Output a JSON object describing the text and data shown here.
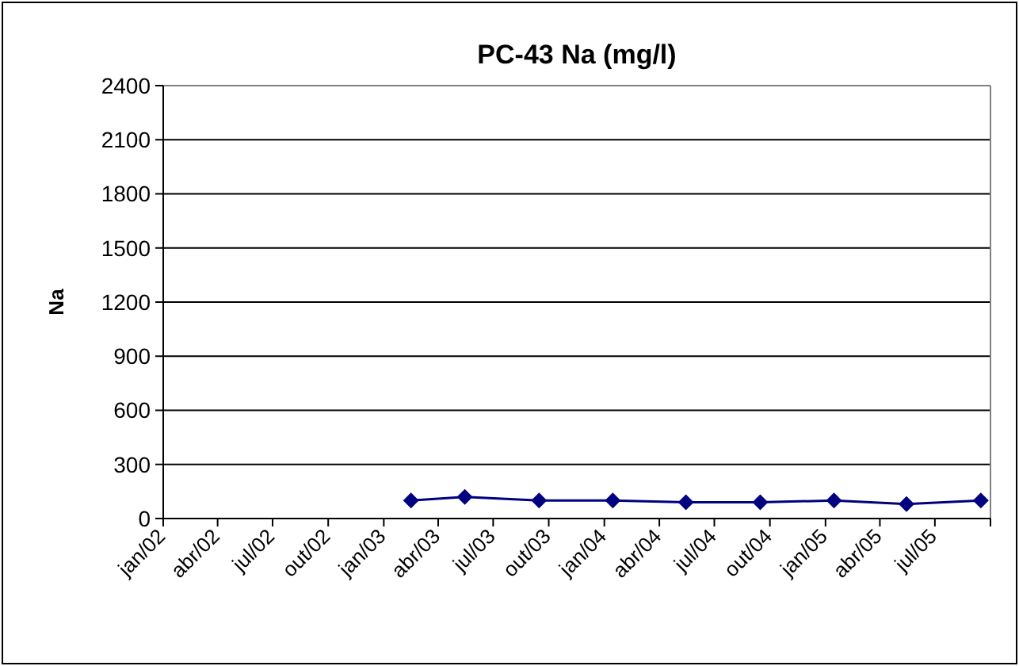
{
  "chart_data": {
    "type": "line",
    "title": "PC-43 Na (mg/l)",
    "ylabel": "Na",
    "x": [
      "2003-02-15",
      "2003-05-15",
      "2003-09-15",
      "2004-01-15",
      "2004-05-15",
      "2004-09-15",
      "2005-01-15",
      "2005-05-15",
      "2005-09-15"
    ],
    "series": [
      {
        "color": "#000080",
        "values": [
          100,
          120,
          100,
          100,
          90,
          90,
          100,
          80,
          100
        ]
      }
    ],
    "xlim": [
      "2002-01",
      "2005-10"
    ],
    "xticks": [
      {
        "value": "2002-01",
        "label": "jan/02"
      },
      {
        "value": "2002-04",
        "label": "abr/02"
      },
      {
        "value": "2002-07",
        "label": "jul/02"
      },
      {
        "value": "2002-10",
        "label": "out/02"
      },
      {
        "value": "2003-01",
        "label": "jan/03"
      },
      {
        "value": "2003-04",
        "label": "abr/03"
      },
      {
        "value": "2003-07",
        "label": "jul/03"
      },
      {
        "value": "2003-10",
        "label": "out/03"
      },
      {
        "value": "2004-01",
        "label": "jan/04"
      },
      {
        "value": "2004-04",
        "label": "abr/04"
      },
      {
        "value": "2004-07",
        "label": "jul/04"
      },
      {
        "value": "2004-10",
        "label": "out/04"
      },
      {
        "value": "2005-01",
        "label": "jan/05"
      },
      {
        "value": "2005-04",
        "label": "abr/05"
      },
      {
        "value": "2005-07",
        "label": "jul/05"
      },
      {
        "value": "2005-10",
        "label": null
      }
    ],
    "ylim": [
      0,
      2400
    ],
    "yticks": [
      0,
      300,
      600,
      900,
      1200,
      1500,
      1800,
      2100,
      2400
    ],
    "grid": "y",
    "marker": "diamond",
    "line_style": "solid"
  }
}
